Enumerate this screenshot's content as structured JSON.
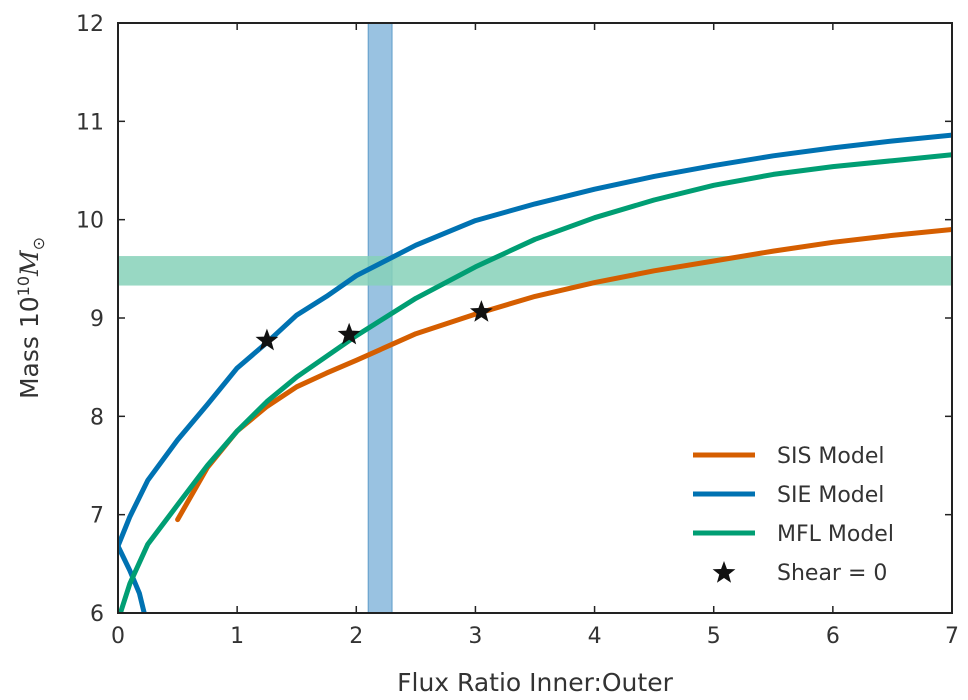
{
  "chart_data": {
    "type": "line",
    "xlabel": "Flux Ratio Inner:Outer",
    "ylabel_prefix": "Mass ",
    "ylabel_unit_base": "10",
    "ylabel_unit_exp": "10",
    "ylabel_unit_symbol": "M",
    "ylabel_unit_subscript": "⊙",
    "xlim": [
      0,
      7
    ],
    "ylim": [
      6,
      12
    ],
    "xticks": [
      0,
      1,
      2,
      3,
      4,
      5,
      6,
      7
    ],
    "yticks": [
      6,
      7,
      8,
      9,
      10,
      11,
      12
    ],
    "grid": false,
    "legend_position": "bottom-right",
    "vertical_band": {
      "x0": 2.1,
      "x1": 2.3,
      "color": "#7fb3d9"
    },
    "horizontal_band": {
      "y0": 9.33,
      "y1": 9.63,
      "color": "#86d1b9"
    },
    "series": [
      {
        "name": "SIS Model",
        "color": "#d55e00",
        "x": [
          0.5,
          0.75,
          1.0,
          1.25,
          1.5,
          1.75,
          2.0,
          2.5,
          3.0,
          3.5,
          4.0,
          4.5,
          5.0,
          5.5,
          6.0,
          6.5,
          7.0
        ],
        "y": [
          6.95,
          7.48,
          7.85,
          8.1,
          8.3,
          8.44,
          8.57,
          8.84,
          9.04,
          9.22,
          9.36,
          9.48,
          9.58,
          9.68,
          9.77,
          9.84,
          9.9
        ]
      },
      {
        "name": "SIE Model",
        "color": "#0072b2",
        "x": [
          0.0,
          0.1,
          0.25,
          0.5,
          0.75,
          1.0,
          1.25,
          1.5,
          1.75,
          2.0,
          2.5,
          3.0,
          3.5,
          4.0,
          4.5,
          5.0,
          5.5,
          6.0,
          6.5,
          7.0
        ],
        "y": [
          6.68,
          6.98,
          7.35,
          7.76,
          8.12,
          8.49,
          8.75,
          9.03,
          9.22,
          9.43,
          9.74,
          9.99,
          10.16,
          10.31,
          10.44,
          10.55,
          10.65,
          10.73,
          10.8,
          10.86
        ]
      },
      {
        "name": "SIE Model branch",
        "color": "#0072b2",
        "x": [
          0.0,
          0.1,
          0.18,
          0.22
        ],
        "y": [
          6.68,
          6.43,
          6.2,
          6.0
        ]
      },
      {
        "name": "MFL Model",
        "color": "#009e73",
        "x": [
          0.02,
          0.1,
          0.25,
          0.5,
          0.75,
          1.0,
          1.25,
          1.5,
          2.0,
          2.5,
          3.0,
          3.5,
          4.0,
          4.5,
          5.0,
          5.5,
          6.0,
          6.5,
          7.0
        ],
        "y": [
          6.0,
          6.3,
          6.7,
          7.1,
          7.5,
          7.85,
          8.15,
          8.4,
          8.82,
          9.2,
          9.52,
          9.8,
          10.02,
          10.2,
          10.35,
          10.46,
          10.54,
          10.6,
          10.66
        ]
      }
    ],
    "markers": {
      "name": "Shear = 0",
      "color": "#111111",
      "points": [
        {
          "x": 1.25,
          "y": 8.77
        },
        {
          "x": 1.94,
          "y": 8.83
        },
        {
          "x": 3.05,
          "y": 9.06
        }
      ]
    },
    "legend": [
      {
        "label": "SIS Model",
        "kind": "line",
        "color": "#d55e00"
      },
      {
        "label": "SIE Model",
        "kind": "line",
        "color": "#0072b2"
      },
      {
        "label": "MFL Model",
        "kind": "line",
        "color": "#009e73"
      },
      {
        "label": "Shear = 0",
        "kind": "star",
        "color": "#111111"
      }
    ]
  }
}
